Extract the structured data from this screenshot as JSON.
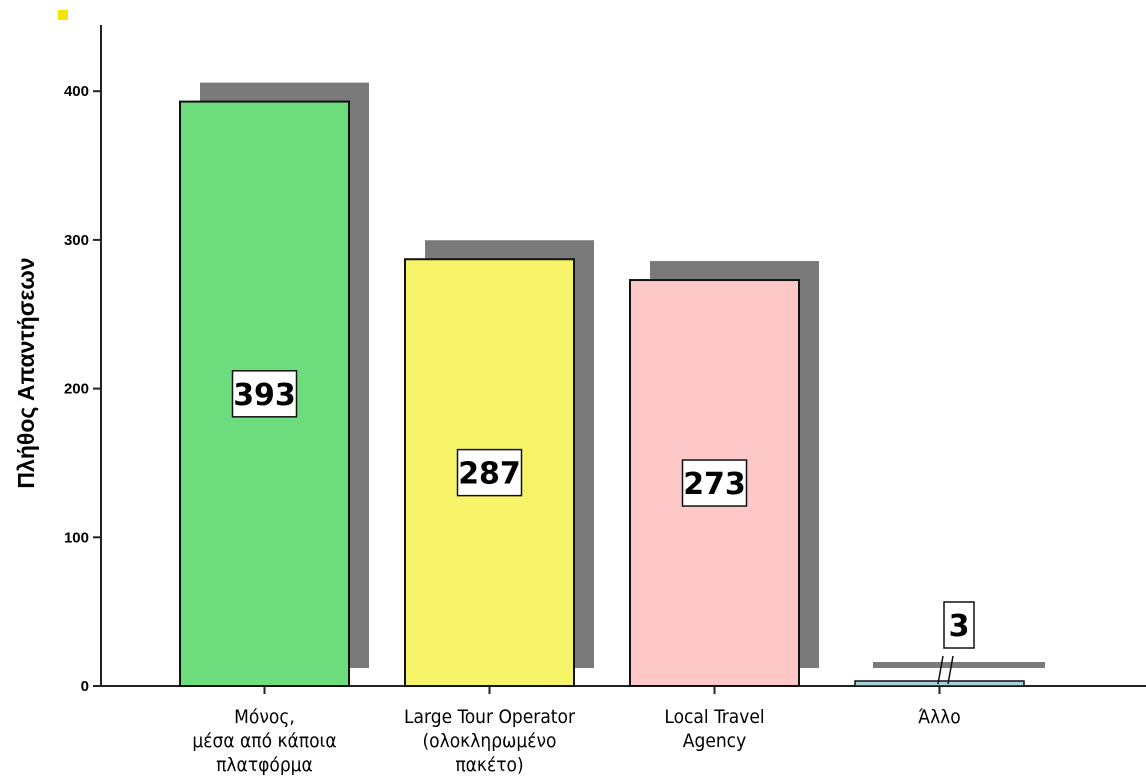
{
  "chart_data": {
    "type": "bar",
    "title": "",
    "xlabel": "",
    "ylabel": "Πλήθος Απαντήσεων",
    "ylim": [
      0,
      440
    ],
    "yticks": [
      0,
      100,
      200,
      300,
      400
    ],
    "grid": false,
    "categories": [
      [
        "Μόνος,",
        "μέσα από κάποια",
        "πλατφόρμα"
      ],
      [
        "Large Tour Operator",
        "(ολοκληρωμένο",
        "πακέτο)"
      ],
      [
        "Local Travel",
        "Agency"
      ],
      [
        "Άλλο"
      ]
    ],
    "values": [
      393,
      287,
      273,
      3
    ],
    "data_labels": [
      "393",
      "287",
      "273",
      "3"
    ],
    "colors": [
      "#6ddc7d",
      "#f8f46a",
      "#ffc8c8",
      "#a8d0d8"
    ],
    "shadow_color": "#7a7a7a",
    "axis_break_on_last_bar": true
  }
}
